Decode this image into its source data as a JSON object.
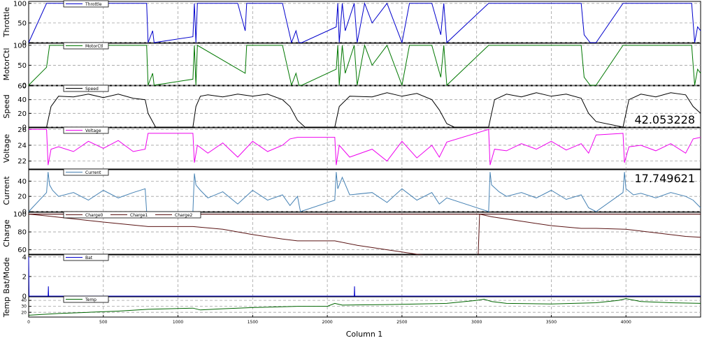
{
  "xlabel": "Column 1",
  "colors": {
    "throttle": "#0000cc",
    "motorctl": "#007700",
    "speed": "#000000",
    "voltage": "#ee00ee",
    "current": "#4682b4",
    "charge": "#5a1414",
    "bat": "#0000cc",
    "temp": "#006600",
    "grid": "#a0a0a0"
  },
  "chart_data": [
    {
      "type": "line",
      "ylabel": "Throttle",
      "ylim": [
        0,
        105
      ],
      "yticks": [
        0,
        50,
        100
      ],
      "legend": [
        "Throttle"
      ],
      "color_key": "throttle",
      "readout": "",
      "xlim": [
        0,
        4500
      ],
      "series": [
        {
          "name": "Throttle",
          "x": [
            0,
            120,
            790,
            800,
            830,
            840,
            1100,
            1110,
            1120,
            1130,
            1250,
            1400,
            1450,
            1460,
            1700,
            1760,
            1790,
            1810,
            1830,
            2060,
            2070,
            2080,
            2100,
            2120,
            2180,
            2200,
            2250,
            2300,
            2400,
            2500,
            2550,
            2700,
            2760,
            2780,
            2800,
            3080,
            3090,
            3700,
            3720,
            3760,
            3800,
            3980,
            3990,
            4440,
            4460,
            4480,
            4500
          ],
          "y": [
            0,
            100,
            100,
            0,
            30,
            0,
            15,
            100,
            0,
            100,
            100,
            100,
            30,
            100,
            100,
            0,
            30,
            0,
            0,
            40,
            100,
            0,
            100,
            30,
            100,
            0,
            100,
            50,
            100,
            0,
            100,
            100,
            20,
            100,
            0,
            100,
            100,
            100,
            20,
            0,
            0,
            100,
            100,
            100,
            0,
            40,
            30
          ]
        }
      ]
    },
    {
      "type": "line",
      "ylabel": "MotorCtl",
      "ylim": [
        0,
        105
      ],
      "yticks": [
        0,
        50,
        100
      ],
      "legend": [
        "MotorCtl"
      ],
      "color_key": "motorctl",
      "readout": "",
      "xlim": [
        0,
        4500
      ],
      "series": [
        {
          "name": "MotorCtl",
          "x": [
            0,
            120,
            140,
            790,
            800,
            830,
            840,
            1100,
            1110,
            1120,
            1130,
            1450,
            1460,
            1700,
            1760,
            1790,
            1810,
            1830,
            2060,
            2070,
            2080,
            2100,
            2120,
            2180,
            2200,
            2250,
            2300,
            2400,
            2500,
            2550,
            2700,
            2760,
            2780,
            2800,
            3080,
            3090,
            3700,
            3720,
            3760,
            3800,
            3980,
            3990,
            4440,
            4460,
            4480,
            4500
          ],
          "y": [
            0,
            45,
            100,
            100,
            0,
            30,
            0,
            15,
            100,
            0,
            100,
            30,
            100,
            100,
            0,
            30,
            0,
            0,
            40,
            100,
            0,
            100,
            30,
            100,
            0,
            100,
            50,
            100,
            0,
            100,
            100,
            20,
            100,
            0,
            100,
            100,
            100,
            20,
            0,
            0,
            100,
            100,
            100,
            0,
            40,
            30
          ]
        }
      ]
    },
    {
      "type": "line",
      "ylabel": "Speed",
      "ylim": [
        0,
        60
      ],
      "yticks": [
        0,
        20,
        40,
        60
      ],
      "legend": [
        "Speed"
      ],
      "color_key": "speed",
      "readout": "42.053228",
      "xlim": [
        0,
        4500
      ],
      "series": [
        {
          "name": "Speed",
          "x": [
            0,
            120,
            150,
            200,
            300,
            400,
            500,
            600,
            700,
            780,
            800,
            850,
            1100,
            1120,
            1150,
            1200,
            1300,
            1400,
            1500,
            1600,
            1700,
            1750,
            1800,
            1850,
            2050,
            2080,
            2150,
            2300,
            2400,
            2500,
            2600,
            2700,
            2750,
            2800,
            2850,
            3080,
            3120,
            3200,
            3300,
            3400,
            3500,
            3600,
            3700,
            3750,
            3800,
            3980,
            4020,
            4100,
            4200,
            4300,
            4400,
            4450,
            4500
          ],
          "y": [
            0,
            0,
            30,
            45,
            44,
            48,
            43,
            48,
            42,
            40,
            20,
            0,
            0,
            30,
            45,
            47,
            44,
            48,
            45,
            48,
            40,
            30,
            10,
            0,
            0,
            30,
            45,
            44,
            50,
            45,
            49,
            40,
            25,
            5,
            0,
            0,
            40,
            48,
            44,
            50,
            45,
            48,
            42,
            20,
            8,
            0,
            40,
            48,
            44,
            50,
            47,
            30,
            20
          ]
        }
      ]
    },
    {
      "type": "line",
      "ylabel": "Voltage",
      "ylim": [
        21,
        26.2
      ],
      "yticks": [
        22,
        24,
        26
      ],
      "legend": [
        "Voltage"
      ],
      "color_key": "voltage",
      "readout": "",
      "xlim": [
        0,
        4500
      ],
      "series": [
        {
          "name": "Voltage",
          "x": [
            0,
            120,
            130,
            150,
            200,
            300,
            400,
            500,
            600,
            700,
            780,
            800,
            850,
            1100,
            1110,
            1130,
            1200,
            1300,
            1400,
            1500,
            1600,
            1700,
            1750,
            1800,
            2050,
            2060,
            2080,
            2150,
            2300,
            2400,
            2500,
            2600,
            2700,
            2750,
            2800,
            3080,
            3090,
            3120,
            3200,
            3300,
            3400,
            3500,
            3600,
            3700,
            3750,
            3800,
            3980,
            3990,
            4020,
            4100,
            4200,
            4300,
            4400,
            4450,
            4500
          ],
          "y": [
            26,
            26,
            21.5,
            23.5,
            23.8,
            23.2,
            24.5,
            23.6,
            24.6,
            23.2,
            23.5,
            25.5,
            25.5,
            25.5,
            21.8,
            24,
            23,
            24.3,
            22.5,
            24.5,
            23.2,
            24,
            24.8,
            25,
            25,
            21.5,
            24,
            22.5,
            23.5,
            22,
            24.5,
            22.4,
            24,
            22.5,
            24.4,
            26,
            21.5,
            23.5,
            23.3,
            24.2,
            23.5,
            24.5,
            23.4,
            24.2,
            23,
            25.3,
            25.5,
            21.8,
            23.8,
            24,
            23.3,
            24.2,
            23,
            24.8,
            25
          ]
        }
      ]
    },
    {
      "type": "line",
      "ylabel": "Current",
      "ylim": [
        0,
        55
      ],
      "yticks": [
        0,
        20,
        40
      ],
      "legend": [
        "Current"
      ],
      "color_key": "current",
      "readout": "17.749621",
      "xlim": [
        0,
        4500
      ],
      "series": [
        {
          "name": "Current",
          "x": [
            0,
            120,
            130,
            140,
            160,
            200,
            300,
            400,
            500,
            600,
            700,
            780,
            790,
            800,
            1100,
            1110,
            1120,
            1150,
            1200,
            1300,
            1400,
            1500,
            1600,
            1700,
            1750,
            1800,
            1820,
            2050,
            2060,
            2070,
            2100,
            2150,
            2300,
            2400,
            2500,
            2600,
            2700,
            2750,
            2800,
            3080,
            3090,
            3100,
            3150,
            3200,
            3300,
            3400,
            3500,
            3600,
            3700,
            3750,
            3800,
            3980,
            3990,
            4000,
            4050,
            4100,
            4200,
            4300,
            4400,
            4450,
            4500
          ],
          "y": [
            0,
            25,
            52,
            35,
            28,
            20,
            25,
            15,
            28,
            18,
            25,
            30,
            0,
            0,
            0,
            50,
            35,
            28,
            18,
            26,
            10,
            28,
            15,
            22,
            8,
            20,
            0,
            15,
            52,
            30,
            45,
            22,
            25,
            12,
            30,
            15,
            25,
            10,
            18,
            0,
            52,
            35,
            26,
            20,
            25,
            18,
            28,
            16,
            22,
            5,
            0,
            25,
            52,
            30,
            22,
            24,
            18,
            25,
            20,
            15,
            5
          ]
        }
      ]
    },
    {
      "type": "line",
      "ylabel": "Charge",
      "ylim": [
        55,
        102
      ],
      "yticks": [
        60,
        80,
        100
      ],
      "legend": [
        "Charge0",
        "Charge1",
        "Charge2"
      ],
      "color_key": "charge",
      "readout": "",
      "xlim": [
        0,
        4500
      ],
      "series": [
        {
          "name": "Charge0",
          "x": [
            0,
            120,
            500,
            800,
            1100,
            1300,
            1500,
            1700,
            1800,
            2050,
            2200,
            2400,
            2600,
            2800,
            3010,
            3020,
            3100,
            3300,
            3500,
            3700,
            3800,
            4000,
            4200,
            4400,
            4500
          ],
          "y": [
            100,
            98,
            91,
            86,
            86,
            83,
            77,
            72,
            70,
            70,
            65,
            60,
            55,
            52,
            52,
            100,
            97,
            92,
            87,
            84,
            84,
            83,
            79,
            75,
            74
          ]
        },
        {
          "name": "Charge1",
          "x": [
            0,
            4500
          ],
          "y": [
            100,
            100
          ]
        },
        {
          "name": "Charge2",
          "x": [
            0,
            4500
          ],
          "y": [
            100,
            100
          ]
        }
      ]
    },
    {
      "type": "line",
      "ylabel": "Bat/Mode",
      "ylim": [
        0,
        4.2
      ],
      "yticks": [
        0,
        2,
        4
      ],
      "legend": [
        "Bat"
      ],
      "color_key": "bat",
      "readout": "",
      "xlim": [
        0,
        4500
      ],
      "series": [
        {
          "name": "Bat",
          "x": [
            0,
            3,
            5,
            130,
            132,
            134,
            2180,
            2182,
            2184,
            4500
          ],
          "y": [
            4,
            0,
            0,
            0,
            1,
            0,
            0,
            1,
            0,
            0
          ]
        }
      ]
    },
    {
      "type": "line",
      "ylabel": "Temp",
      "ylim": [
        12,
        46
      ],
      "yticks": [
        20,
        30,
        40
      ],
      "legend": [
        "Temp"
      ],
      "color_key": "temp",
      "readout": "",
      "xlim": [
        0,
        4500
      ],
      "xticks": [
        0,
        500,
        1000,
        1500,
        2000,
        2500,
        3000,
        3500,
        4000
      ],
      "series": [
        {
          "name": "Temp",
          "x": [
            0,
            200,
            400,
            600,
            800,
            1100,
            1150,
            1300,
            1500,
            1800,
            2000,
            2050,
            2100,
            2400,
            2800,
            3000,
            3050,
            3100,
            3200,
            3500,
            3800,
            3950,
            4000,
            4100,
            4300,
            4500
          ],
          "y": [
            15,
            18,
            20,
            22,
            25,
            27,
            24,
            26,
            28,
            30,
            30,
            35,
            32,
            33,
            35,
            40,
            42,
            38,
            35,
            34,
            36,
            40,
            43,
            38,
            36,
            35
          ]
        }
      ]
    }
  ]
}
